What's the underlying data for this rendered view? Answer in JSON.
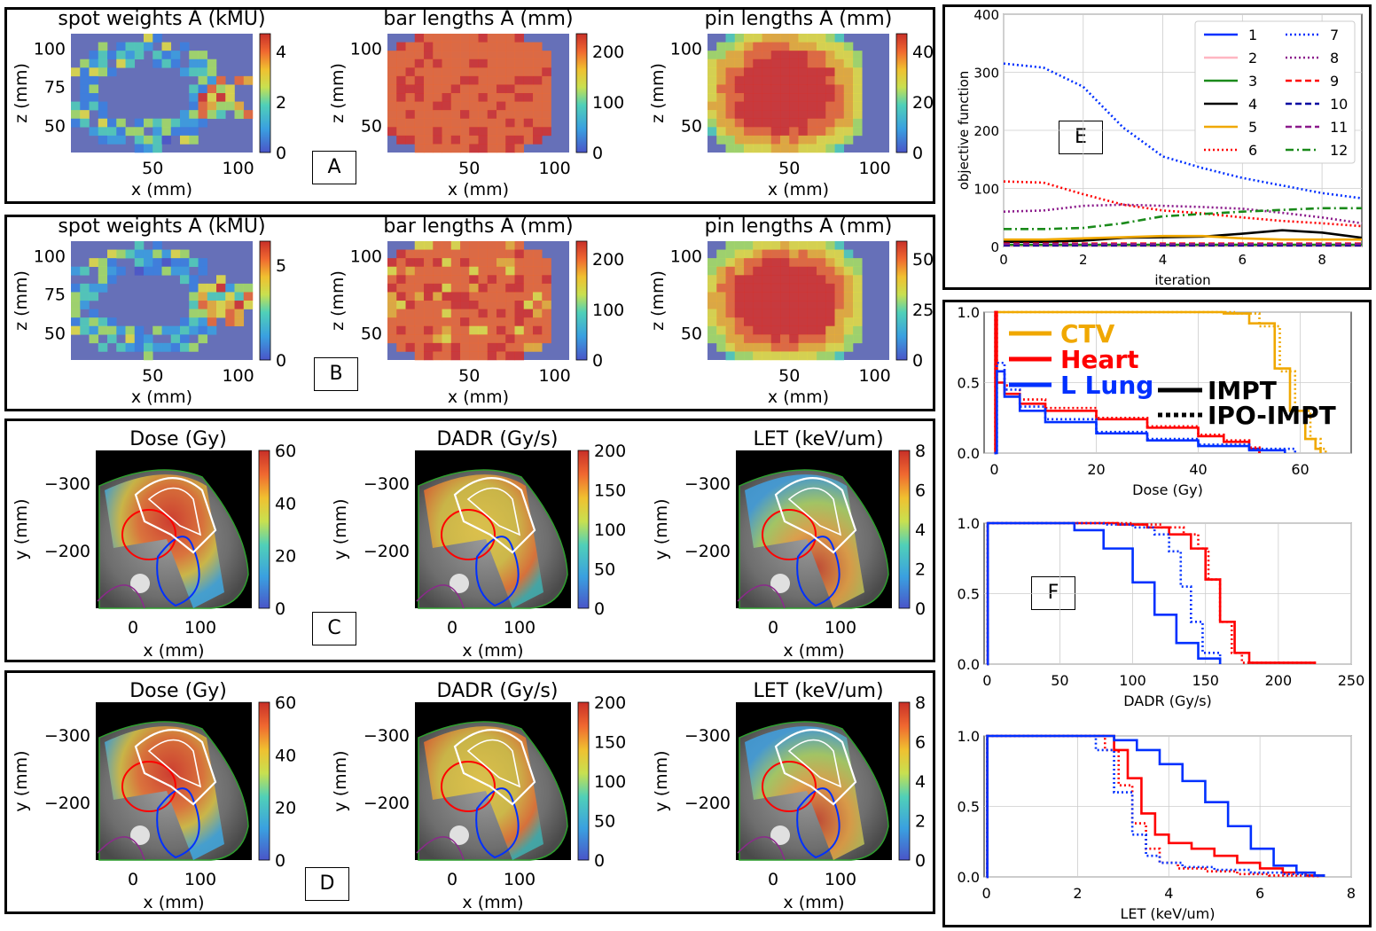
{
  "colors": {
    "heatmap_bg": "#6670b8",
    "map_bg": "#000000",
    "ctv": "#f0a800",
    "heart": "#ff0000",
    "lung": "#0030ff",
    "contour_white": "#ffffff",
    "contour_green": "#2e9e2e",
    "contour_purple": "#8b2a8b"
  },
  "panels": {
    "A": {
      "label": "A",
      "maps": [
        {
          "title": "spot weights A (kMU)",
          "xlabel": "x (mm)",
          "ylabel": "z (mm)",
          "xticks": [
            "50",
            "100"
          ],
          "yticks": [
            "100",
            "75",
            "50"
          ],
          "cticks": [
            "4",
            "2",
            "0"
          ],
          "kind": "spot"
        },
        {
          "title": "bar lengths A (mm)",
          "xlabel": "x (mm)",
          "ylabel": "z (mm)",
          "xticks": [
            "50",
            "100"
          ],
          "yticks": [
            "100",
            "50"
          ],
          "cticks": [
            "200",
            "100",
            "0"
          ],
          "kind": "bar"
        },
        {
          "title": "pin lengths A (mm)",
          "xlabel": "x (mm)",
          "ylabel": "z (mm)",
          "xticks": [
            "50",
            "100"
          ],
          "yticks": [
            "100",
            "50"
          ],
          "cticks": [
            "40",
            "20",
            "0"
          ],
          "kind": "pin"
        }
      ]
    },
    "B": {
      "label": "B",
      "maps": [
        {
          "title": "spot weights A (kMU)",
          "xlabel": "x (mm)",
          "ylabel": "z (mm)",
          "xticks": [
            "50",
            "100"
          ],
          "yticks": [
            "100",
            "75",
            "50"
          ],
          "cticks": [
            "5",
            "0"
          ],
          "kind": "spot"
        },
        {
          "title": "bar lengths A (mm)",
          "xlabel": "x (mm)",
          "ylabel": "z (mm)",
          "xticks": [
            "50",
            "100"
          ],
          "yticks": [
            "100",
            "50"
          ],
          "cticks": [
            "200",
            "100",
            "0"
          ],
          "kind": "bar"
        },
        {
          "title": "pin lengths A (mm)",
          "xlabel": "x (mm)",
          "ylabel": "z (mm)",
          "xticks": [
            "50",
            "100"
          ],
          "yticks": [
            "100",
            "50"
          ],
          "cticks": [
            "50",
            "25",
            "0"
          ],
          "kind": "pin"
        }
      ]
    },
    "C": {
      "label": "C",
      "maps": [
        {
          "title": "Dose (Gy)",
          "xlabel": "x (mm)",
          "ylabel": "y (mm)",
          "xticks": [
            "0",
            "100"
          ],
          "yticks": [
            "−300",
            "−200"
          ],
          "cticks": [
            "60",
            "40",
            "20",
            "0"
          ],
          "kind": "dose"
        },
        {
          "title": "DADR (Gy/s)",
          "xlabel": "x (mm)",
          "ylabel": "y (mm)",
          "xticks": [
            "0",
            "100"
          ],
          "yticks": [
            "−300",
            "−200"
          ],
          "cticks": [
            "200",
            "150",
            "100",
            "50",
            "0"
          ],
          "kind": "dadr"
        },
        {
          "title": "LET (keV/um)",
          "xlabel": "x (mm)",
          "ylabel": "y (mm)",
          "xticks": [
            "0",
            "100"
          ],
          "yticks": [
            "−300",
            "−200"
          ],
          "cticks": [
            "8",
            "6",
            "4",
            "2",
            "0"
          ],
          "kind": "let"
        }
      ]
    },
    "D": {
      "label": "D",
      "maps": [
        {
          "title": "Dose (Gy)",
          "xlabel": "x (mm)",
          "ylabel": "y (mm)",
          "xticks": [
            "0",
            "100"
          ],
          "yticks": [
            "−300",
            "−200"
          ],
          "cticks": [
            "60",
            "40",
            "20",
            "0"
          ],
          "kind": "dose"
        },
        {
          "title": "DADR (Gy/s)",
          "xlabel": "x (mm)",
          "ylabel": "y (mm)",
          "xticks": [
            "0",
            "100"
          ],
          "yticks": [
            "−300",
            "−200"
          ],
          "cticks": [
            "200",
            "150",
            "100",
            "50",
            "0"
          ],
          "kind": "dadr"
        },
        {
          "title": "LET (keV/um)",
          "xlabel": "x (mm)",
          "ylabel": "y (mm)",
          "xticks": [
            "0",
            "100"
          ],
          "yticks": [
            "−300",
            "−200"
          ],
          "cticks": [
            "8",
            "6",
            "4",
            "2",
            "0"
          ],
          "kind": "let"
        }
      ]
    },
    "E": {
      "label": "E"
    },
    "F": {
      "label": "F"
    }
  },
  "chart_data": [
    {
      "type": "line",
      "panel": "E",
      "title": "",
      "xlabel": "iteration",
      "ylabel": "objective function",
      "xlim": [
        0,
        9
      ],
      "ylim": [
        0,
        400
      ],
      "xticks": [
        0,
        2,
        4,
        6,
        8
      ],
      "yticks": [
        0,
        100,
        200,
        300,
        400
      ],
      "x": [
        0,
        1,
        2,
        3,
        4,
        5,
        6,
        7,
        8,
        9
      ],
      "series": [
        {
          "name": "1",
          "color": "#0030ff",
          "dash": "solid",
          "values": [
            2,
            2,
            2,
            2,
            2,
            2,
            2,
            2,
            2,
            2
          ]
        },
        {
          "name": "2",
          "color": "#ffb6c1",
          "dash": "solid",
          "values": [
            1,
            1,
            1,
            1,
            1,
            1,
            1,
            1,
            1,
            1
          ]
        },
        {
          "name": "3",
          "color": "#1a8a1a",
          "dash": "solid",
          "values": [
            3,
            3,
            3,
            3,
            3,
            3,
            3,
            3,
            3,
            3
          ]
        },
        {
          "name": "4",
          "color": "#000000",
          "dash": "solid",
          "values": [
            8,
            8,
            10,
            15,
            16,
            17,
            22,
            28,
            24,
            15
          ]
        },
        {
          "name": "5",
          "color": "#f0a800",
          "dash": "solid",
          "values": [
            12,
            12,
            14,
            16,
            18,
            18,
            14,
            12,
            12,
            12
          ]
        },
        {
          "name": "6",
          "color": "#ff0000",
          "dash": "dot",
          "values": [
            112,
            110,
            90,
            72,
            62,
            57,
            50,
            44,
            40,
            35
          ]
        },
        {
          "name": "7",
          "color": "#0030ff",
          "dash": "dot",
          "values": [
            315,
            308,
            275,
            205,
            155,
            135,
            118,
            105,
            92,
            83
          ]
        },
        {
          "name": "8",
          "color": "#8b1a8b",
          "dash": "dot",
          "values": [
            60,
            62,
            70,
            72,
            70,
            68,
            65,
            58,
            50,
            40
          ]
        },
        {
          "name": "9",
          "color": "#ff0000",
          "dash": "dash",
          "values": [
            5,
            5,
            5,
            5,
            5,
            5,
            5,
            5,
            5,
            5
          ]
        },
        {
          "name": "10",
          "color": "#0000a0",
          "dash": "dash",
          "values": [
            2,
            2,
            2,
            2,
            2,
            2,
            2,
            2,
            2,
            2
          ]
        },
        {
          "name": "11",
          "color": "#8b1a8b",
          "dash": "dash",
          "values": [
            4,
            4,
            4,
            4,
            4,
            4,
            4,
            4,
            4,
            4
          ]
        },
        {
          "name": "12",
          "color": "#1a8a1a",
          "dash": "dashdot",
          "values": [
            30,
            30,
            32,
            40,
            52,
            56,
            60,
            63,
            66,
            66
          ]
        }
      ]
    },
    {
      "type": "line",
      "panel": "F",
      "title": "",
      "xlabel": "Dose (Gy)",
      "ylabel": "",
      "xlim": [
        -2,
        70
      ],
      "ylim": [
        0,
        1
      ],
      "xticks": [
        0,
        20,
        40,
        60
      ],
      "yticks": [
        0.0,
        0.5,
        1.0
      ],
      "legend": {
        "structures": [
          "CTV",
          "Heart",
          "L Lung"
        ],
        "styles": [
          "IMPT",
          "IPO-IMPT"
        ]
      },
      "series": [
        {
          "name": "CTV IMPT",
          "color": "#f0a800",
          "dash": "solid",
          "x": [
            0,
            40,
            45,
            50,
            55,
            58,
            61,
            63,
            64
          ],
          "values": [
            1,
            1,
            0.99,
            0.92,
            0.6,
            0.3,
            0.1,
            0.03,
            0
          ]
        },
        {
          "name": "CTV IPO-IMPT",
          "color": "#f0a800",
          "dash": "dot",
          "x": [
            0,
            42,
            47,
            52,
            56,
            59,
            62,
            64,
            65
          ],
          "values": [
            1,
            1,
            0.99,
            0.9,
            0.58,
            0.3,
            0.1,
            0.03,
            0
          ]
        },
        {
          "name": "Heart IMPT",
          "color": "#ff0000",
          "dash": "solid",
          "x": [
            0,
            0.2,
            0.5,
            2,
            5,
            10,
            20,
            30,
            40,
            45,
            50,
            52
          ],
          "values": [
            0,
            1,
            0.5,
            0.42,
            0.35,
            0.3,
            0.24,
            0.18,
            0.12,
            0.08,
            0.03,
            0
          ]
        },
        {
          "name": "Heart IPO-IMPT",
          "color": "#ff0000",
          "dash": "dot",
          "x": [
            0,
            0.2,
            0.5,
            2,
            5,
            10,
            20,
            30,
            40,
            45,
            50,
            52
          ],
          "values": [
            0,
            1,
            0.58,
            0.48,
            0.38,
            0.32,
            0.25,
            0.19,
            0.13,
            0.09,
            0.04,
            0
          ]
        },
        {
          "name": "L Lung IMPT",
          "color": "#0030ff",
          "dash": "solid",
          "x": [
            0,
            0.5,
            2,
            5,
            10,
            20,
            30,
            40,
            50,
            57
          ],
          "values": [
            0,
            0.58,
            0.4,
            0.3,
            0.22,
            0.14,
            0.09,
            0.05,
            0.02,
            0
          ]
        },
        {
          "name": "L Lung IPO-IMPT",
          "color": "#0030ff",
          "dash": "dot",
          "x": [
            0,
            0.5,
            2,
            5,
            10,
            20,
            30,
            40,
            50,
            59
          ],
          "values": [
            0,
            0.64,
            0.45,
            0.33,
            0.24,
            0.15,
            0.1,
            0.06,
            0.03,
            0
          ]
        }
      ]
    },
    {
      "type": "line",
      "panel": "F",
      "title": "",
      "xlabel": "DADR (Gy/s)",
      "ylabel": "",
      "xlim": [
        -2,
        250
      ],
      "ylim": [
        0,
        1
      ],
      "xticks": [
        0,
        50,
        100,
        150,
        200,
        250
      ],
      "yticks": [
        0.0,
        0.5,
        1.0
      ],
      "series": [
        {
          "name": "Heart IMPT",
          "color": "#ff0000",
          "dash": "solid",
          "x": [
            0,
            0.5,
            90,
            110,
            125,
            140,
            150,
            160,
            170,
            180,
            225
          ],
          "values": [
            0,
            1,
            0.99,
            0.97,
            0.92,
            0.82,
            0.6,
            0.3,
            0.08,
            0.01,
            0
          ]
        },
        {
          "name": "Heart IPO-IMPT",
          "color": "#ff0000",
          "dash": "dot",
          "x": [
            0,
            0.5,
            100,
            120,
            135,
            145,
            152,
            160,
            168,
            175,
            225
          ],
          "values": [
            0,
            1,
            0.99,
            0.97,
            0.92,
            0.82,
            0.6,
            0.3,
            0.08,
            0.01,
            0
          ]
        },
        {
          "name": "L Lung IMPT",
          "color": "#0030ff",
          "dash": "solid",
          "x": [
            0,
            0.5,
            40,
            60,
            80,
            100,
            115,
            130,
            145,
            160
          ],
          "values": [
            0,
            1,
            1,
            0.95,
            0.82,
            0.58,
            0.35,
            0.15,
            0.04,
            0
          ]
        },
        {
          "name": "L Lung IPO-IMPT",
          "color": "#0030ff",
          "dash": "dot",
          "x": [
            0,
            0.5,
            80,
            100,
            115,
            125,
            133,
            140,
            148,
            160
          ],
          "values": [
            0,
            1,
            0.99,
            0.97,
            0.92,
            0.8,
            0.55,
            0.3,
            0.08,
            0
          ]
        }
      ]
    },
    {
      "type": "line",
      "panel": "F",
      "title": "",
      "xlabel": "LET (keV/um)",
      "ylabel": "",
      "xlim": [
        -0.05,
        8
      ],
      "ylim": [
        0,
        1
      ],
      "xticks": [
        0,
        2,
        4,
        6,
        8
      ],
      "yticks": [
        0.0,
        0.5,
        1.0
      ],
      "series": [
        {
          "name": "Heart IMPT",
          "color": "#ff0000",
          "dash": "solid",
          "x": [
            0,
            0.02,
            2.5,
            2.8,
            3.1,
            3.4,
            3.7,
            4.0,
            4.5,
            5.0,
            5.5,
            6.0,
            6.5,
            7.0,
            7.4
          ],
          "values": [
            0,
            1,
            1,
            0.9,
            0.7,
            0.45,
            0.3,
            0.24,
            0.2,
            0.15,
            0.1,
            0.06,
            0.03,
            0.01,
            0
          ]
        },
        {
          "name": "Heart IPO-IMPT",
          "color": "#ff0000",
          "dash": "dot",
          "x": [
            0,
            0.02,
            2.3,
            2.6,
            2.9,
            3.2,
            3.5,
            3.8,
            4.2,
            4.8,
            5.5,
            6.2,
            7.0,
            7.3
          ],
          "values": [
            0,
            1,
            1,
            0.9,
            0.65,
            0.38,
            0.2,
            0.1,
            0.06,
            0.04,
            0.02,
            0.01,
            0.005,
            0
          ]
        },
        {
          "name": "L Lung IMPT",
          "color": "#0030ff",
          "dash": "solid",
          "x": [
            0,
            0.02,
            2.3,
            2.8,
            3.3,
            3.8,
            4.3,
            4.8,
            5.3,
            5.8,
            6.3,
            6.8,
            7.2,
            7.4
          ],
          "values": [
            0,
            1,
            1,
            0.97,
            0.9,
            0.8,
            0.68,
            0.53,
            0.36,
            0.2,
            0.08,
            0.03,
            0.01,
            0
          ]
        },
        {
          "name": "L Lung IPO-IMPT",
          "color": "#0030ff",
          "dash": "dot",
          "x": [
            0,
            0.02,
            2.0,
            2.4,
            2.8,
            3.2,
            3.5,
            3.8,
            4.3,
            5.0,
            5.8,
            6.5,
            7.0,
            7.4
          ],
          "values": [
            0,
            1,
            1,
            0.9,
            0.6,
            0.3,
            0.15,
            0.1,
            0.07,
            0.05,
            0.03,
            0.02,
            0.01,
            0
          ]
        }
      ]
    }
  ]
}
